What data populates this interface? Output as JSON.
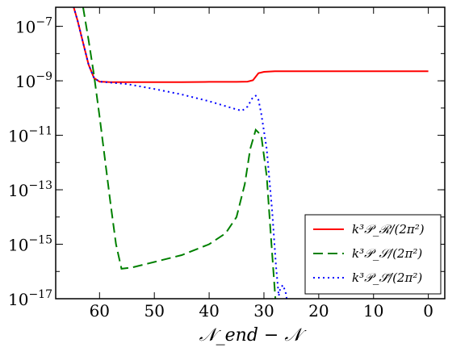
{
  "chart_data": {
    "type": "line",
    "xlabel": "𝒩_end − 𝒩",
    "x_reversed": true,
    "xlim": [
      68,
      -3
    ],
    "ylim_log10": [
      -17,
      -6.3
    ],
    "yscale": "log",
    "grid": false,
    "legend_placement": "lower-right",
    "x_ticks": [
      {
        "value": 60,
        "label": "60"
      },
      {
        "value": 50,
        "label": "50"
      },
      {
        "value": 40,
        "label": "40"
      },
      {
        "value": 30,
        "label": "30"
      },
      {
        "value": 20,
        "label": "20"
      },
      {
        "value": 10,
        "label": "10"
      },
      {
        "value": 0,
        "label": "0"
      }
    ],
    "y_ticks": [
      {
        "exp": -7,
        "base": "10",
        "sup": "−7"
      },
      {
        "exp": -9,
        "base": "10",
        "sup": "−9"
      },
      {
        "exp": -11,
        "base": "10",
        "sup": "−11"
      },
      {
        "exp": -13,
        "base": "10",
        "sup": "−13"
      },
      {
        "exp": -15,
        "base": "10",
        "sup": "−15"
      },
      {
        "exp": -17,
        "base": "10",
        "sup": "−17"
      }
    ],
    "series": [
      {
        "name": "k³𝒫_ℛ/(2π²)",
        "color": "#ff0000",
        "dash": "solid",
        "points": [
          [
            65,
            -6.1
          ],
          [
            64,
            -6.8
          ],
          [
            63,
            -7.6
          ],
          [
            62,
            -8.4
          ],
          [
            61,
            -8.9
          ],
          [
            60,
            -9.03
          ],
          [
            58,
            -9.05
          ],
          [
            55,
            -9.05
          ],
          [
            50,
            -9.05
          ],
          [
            45,
            -9.05
          ],
          [
            40,
            -9.04
          ],
          [
            35,
            -9.04
          ],
          [
            33,
            -9.03
          ],
          [
            32,
            -8.98
          ],
          [
            31.5,
            -8.85
          ],
          [
            31,
            -8.72
          ],
          [
            30,
            -8.67
          ],
          [
            28,
            -8.65
          ],
          [
            20,
            -8.65
          ],
          [
            10,
            -8.65
          ],
          [
            0,
            -8.65
          ]
        ]
      },
      {
        "name": "k³𝒫_𝒮/(2π²)",
        "color": "#008000",
        "dash": "dashed",
        "points": [
          [
            63,
            -6.3
          ],
          [
            62,
            -7.5
          ],
          [
            61,
            -8.8
          ],
          [
            60,
            -10.3
          ],
          [
            59,
            -11.9
          ],
          [
            58,
            -13.5
          ],
          [
            57,
            -15.0
          ],
          [
            56,
            -15.9
          ],
          [
            54,
            -15.85
          ],
          [
            50,
            -15.65
          ],
          [
            45,
            -15.4
          ],
          [
            40,
            -15.0
          ],
          [
            37,
            -14.6
          ],
          [
            35,
            -14.0
          ],
          [
            33.5,
            -12.8
          ],
          [
            32.5,
            -11.5
          ],
          [
            31.5,
            -10.8
          ],
          [
            30.5,
            -11.0
          ],
          [
            29.5,
            -12.5
          ],
          [
            28.8,
            -14.5
          ],
          [
            28.2,
            -16.2
          ],
          [
            27.8,
            -17.3
          ]
        ]
      },
      {
        "name": "k³𝒫_𝒮̃/(2π²)",
        "color": "#0000ff",
        "dash": "dotted",
        "points": [
          [
            65,
            -6.1
          ],
          [
            64,
            -6.8
          ],
          [
            63,
            -7.6
          ],
          [
            62,
            -8.4
          ],
          [
            61,
            -8.9
          ],
          [
            60,
            -9.03
          ],
          [
            55,
            -9.12
          ],
          [
            50,
            -9.3
          ],
          [
            45,
            -9.5
          ],
          [
            40,
            -9.75
          ],
          [
            35,
            -10.05
          ],
          [
            34,
            -10.1
          ],
          [
            33,
            -9.95
          ],
          [
            32,
            -9.6
          ],
          [
            31.5,
            -9.55
          ],
          [
            31,
            -9.7
          ],
          [
            30.5,
            -10.2
          ],
          [
            29.5,
            -11.5
          ],
          [
            28.5,
            -13.8
          ],
          [
            27.8,
            -15.8
          ],
          [
            27.3,
            -16.9
          ],
          [
            27.0,
            -16.6
          ],
          [
            26.5,
            -16.5
          ],
          [
            26.0,
            -16.8
          ],
          [
            25.6,
            -17.3
          ]
        ]
      }
    ]
  }
}
